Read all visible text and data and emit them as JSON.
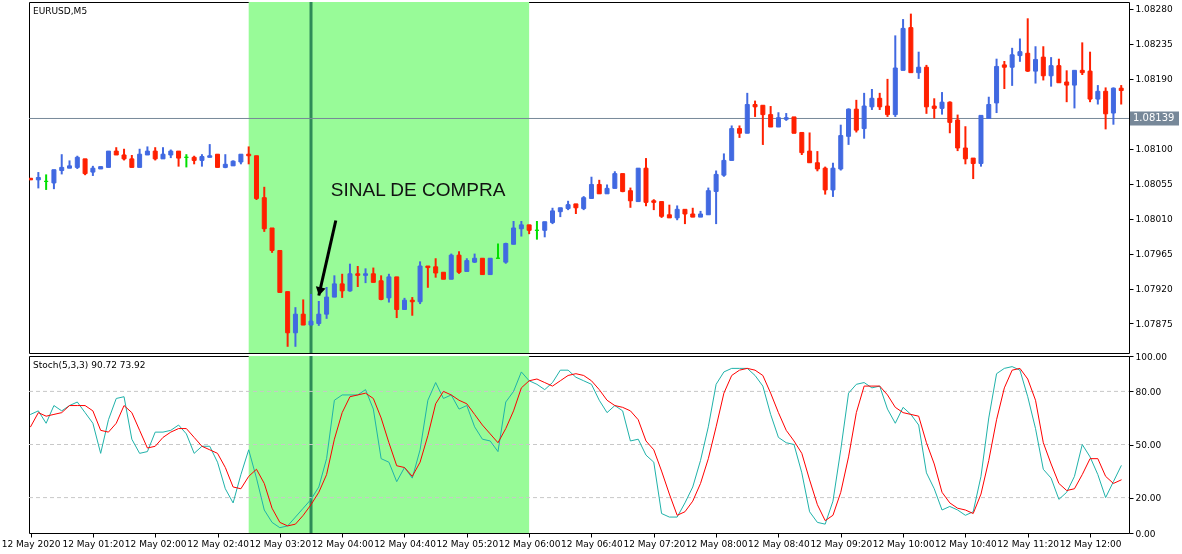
{
  "chart_data": [
    {
      "type": "candlestick",
      "title": "EURUSD,M5",
      "x": [
        "2020-05-12T00:40",
        "2020-05-12T00:45",
        "2020-05-12T00:50",
        "2020-05-12T00:55",
        "2020-05-12T01:00",
        "2020-05-12T01:05",
        "2020-05-12T01:10",
        "2020-05-12T01:15",
        "2020-05-12T01:20",
        "2020-05-12T01:25",
        "2020-05-12T01:30",
        "2020-05-12T01:35",
        "2020-05-12T01:40",
        "2020-05-12T01:45",
        "2020-05-12T01:50",
        "2020-05-12T01:55",
        "2020-05-12T02:00",
        "2020-05-12T02:05",
        "2020-05-12T02:10",
        "2020-05-12T02:15",
        "2020-05-12T02:20",
        "2020-05-12T02:25",
        "2020-05-12T02:30",
        "2020-05-12T02:35",
        "2020-05-12T02:40",
        "2020-05-12T02:45",
        "2020-05-12T02:50",
        "2020-05-12T02:55",
        "2020-05-12T03:00",
        "2020-05-12T03:05",
        "2020-05-12T03:10",
        "2020-05-12T03:15",
        "2020-05-12T03:20",
        "2020-05-12T03:25",
        "2020-05-12T03:30",
        "2020-05-12T03:35",
        "2020-05-12T03:40",
        "2020-05-12T03:45",
        "2020-05-12T03:50",
        "2020-05-12T03:55",
        "2020-05-12T04:00",
        "2020-05-12T04:05",
        "2020-05-12T04:10",
        "2020-05-12T04:15",
        "2020-05-12T04:20",
        "2020-05-12T04:25",
        "2020-05-12T04:30",
        "2020-05-12T04:35",
        "2020-05-12T04:40",
        "2020-05-12T04:45",
        "2020-05-12T04:50",
        "2020-05-12T04:55",
        "2020-05-12T05:00",
        "2020-05-12T05:05",
        "2020-05-12T05:10",
        "2020-05-12T05:15",
        "2020-05-12T05:20",
        "2020-05-12T05:25",
        "2020-05-12T05:30",
        "2020-05-12T05:35",
        "2020-05-12T05:40",
        "2020-05-12T05:45",
        "2020-05-12T05:50",
        "2020-05-12T05:55",
        "2020-05-12T06:00",
        "2020-05-12T06:05",
        "2020-05-12T06:10",
        "2020-05-12T06:15",
        "2020-05-12T06:20",
        "2020-05-12T06:25",
        "2020-05-12T06:30",
        "2020-05-12T06:35",
        "2020-05-12T06:40",
        "2020-05-12T06:45",
        "2020-05-12T06:50",
        "2020-05-12T06:55",
        "2020-05-12T07:00",
        "2020-05-12T07:05",
        "2020-05-12T07:10",
        "2020-05-12T07:15",
        "2020-05-12T07:20",
        "2020-05-12T07:25",
        "2020-05-12T07:30",
        "2020-05-12T07:35",
        "2020-05-12T07:40",
        "2020-05-12T07:45",
        "2020-05-12T07:50",
        "2020-05-12T07:55",
        "2020-05-12T08:00",
        "2020-05-12T08:05",
        "2020-05-12T08:10",
        "2020-05-12T08:15",
        "2020-05-12T08:20",
        "2020-05-12T08:25",
        "2020-05-12T08:30",
        "2020-05-12T08:35",
        "2020-05-12T08:40",
        "2020-05-12T08:45",
        "2020-05-12T08:50",
        "2020-05-12T08:55",
        "2020-05-12T09:00",
        "2020-05-12T09:05",
        "2020-05-12T09:10",
        "2020-05-12T09:15",
        "2020-05-12T09:20",
        "2020-05-12T09:25",
        "2020-05-12T09:30",
        "2020-05-12T09:35",
        "2020-05-12T09:40",
        "2020-05-12T09:45",
        "2020-05-12T09:50",
        "2020-05-12T09:55",
        "2020-05-12T10:00",
        "2020-05-12T10:05",
        "2020-05-12T10:10",
        "2020-05-12T10:15",
        "2020-05-12T10:20",
        "2020-05-12T10:25",
        "2020-05-12T10:30",
        "2020-05-12T10:35",
        "2020-05-12T10:40",
        "2020-05-12T10:45",
        "2020-05-12T10:50",
        "2020-05-12T10:55",
        "2020-05-12T11:00",
        "2020-05-12T11:05",
        "2020-05-12T11:10",
        "2020-05-12T11:15",
        "2020-05-12T11:20",
        "2020-05-12T11:25",
        "2020-05-12T11:30",
        "2020-05-12T11:35",
        "2020-05-12T11:40",
        "2020-05-12T11:45",
        "2020-05-12T11:50",
        "2020-05-12T11:55",
        "2020-05-12T12:00",
        "2020-05-12T12:05",
        "2020-05-12T12:10",
        "2020-05-12T12:15",
        "2020-05-12T12:20"
      ],
      "ohlc": [
        [
          1.08062,
          1.08062,
          1.0806,
          1.0806
        ],
        [
          1.0806,
          1.0807,
          1.08049,
          1.08063
        ],
        [
          1.08058,
          1.08067,
          1.08047,
          1.08058
        ],
        [
          1.08056,
          1.08073,
          1.08048,
          1.08073
        ],
        [
          1.08072,
          1.08093,
          1.08067,
          1.08076
        ],
        [
          1.08075,
          1.08085,
          1.08075,
          1.08078
        ],
        [
          1.08076,
          1.08091,
          1.08074,
          1.08089
        ],
        [
          1.08087,
          1.08087,
          1.08066,
          1.08068
        ],
        [
          1.0807,
          1.08078,
          1.08065,
          1.08075
        ],
        [
          1.08074,
          1.08077,
          1.08074,
          1.08077
        ],
        [
          1.08076,
          1.08097,
          1.08076,
          1.08097
        ],
        [
          1.08097,
          1.08102,
          1.08092,
          1.08092
        ],
        [
          1.08092,
          1.081,
          1.08085,
          1.08087
        ],
        [
          1.08087,
          1.08092,
          1.08076,
          1.08076
        ],
        [
          1.08076,
          1.081,
          1.08076,
          1.08093
        ],
        [
          1.08092,
          1.08103,
          1.08092,
          1.08097
        ],
        [
          1.08097,
          1.08102,
          1.08085,
          1.08087
        ],
        [
          1.08087,
          1.08102,
          1.08087,
          1.08093
        ],
        [
          1.08092,
          1.08099,
          1.08088,
          1.08097
        ],
        [
          1.08097,
          1.08097,
          1.08077,
          1.08088
        ],
        [
          1.08089,
          1.08093,
          1.08076,
          1.08089
        ],
        [
          1.08089,
          1.08091,
          1.0808,
          1.08085
        ],
        [
          1.08085,
          1.08093,
          1.08077,
          1.0809
        ],
        [
          1.08089,
          1.08106,
          1.08089,
          1.08091
        ],
        [
          1.08093,
          1.08093,
          1.08076,
          1.08076
        ],
        [
          1.08076,
          1.08093,
          1.08075,
          1.0808
        ],
        [
          1.08078,
          1.08085,
          1.08078,
          1.08084
        ],
        [
          1.08083,
          1.08093,
          1.0808,
          1.08093
        ],
        [
          1.08093,
          1.08103,
          1.0808,
          1.08091
        ],
        [
          1.08091,
          1.08091,
          1.08034,
          1.08036
        ],
        [
          1.08037,
          1.08051,
          1.07993,
          1.07997
        ],
        [
          1.07998,
          1.07998,
          1.07966,
          1.07969
        ],
        [
          1.07969,
          1.07969,
          1.07915,
          1.07915
        ],
        [
          1.07916,
          1.07916,
          1.07845,
          1.07863
        ],
        [
          1.07863,
          1.07896,
          1.07845,
          1.07887
        ],
        [
          1.07887,
          1.07906,
          1.07873,
          1.07873
        ],
        [
          1.07873,
          1.07913,
          1.07873,
          1.07878
        ],
        [
          1.07875,
          1.07904,
          1.07872,
          1.07887
        ],
        [
          1.07887,
          1.07922,
          1.07881,
          1.07909
        ],
        [
          1.07909,
          1.07937,
          1.07909,
          1.07926
        ],
        [
          1.07926,
          1.07939,
          1.07908,
          1.07917
        ],
        [
          1.07917,
          1.07952,
          1.07916,
          1.07939
        ],
        [
          1.07939,
          1.07949,
          1.07922,
          1.07937
        ],
        [
          1.07937,
          1.07946,
          1.07927,
          1.07939
        ],
        [
          1.07939,
          1.07947,
          1.07928,
          1.07928
        ],
        [
          1.0793,
          1.07937,
          1.07905,
          1.07906
        ],
        [
          1.07908,
          1.07939,
          1.07902,
          1.07935
        ],
        [
          1.07935,
          1.07935,
          1.07882,
          1.07893
        ],
        [
          1.07893,
          1.07908,
          1.07893,
          1.07905
        ],
        [
          1.07905,
          1.07909,
          1.07885,
          1.07903
        ],
        [
          1.07903,
          1.07955,
          1.079,
          1.07949
        ],
        [
          1.07949,
          1.07949,
          1.07921,
          1.07947
        ],
        [
          1.07948,
          1.07959,
          1.07934,
          1.0794
        ],
        [
          1.07941,
          1.07941,
          1.07932,
          1.07932
        ],
        [
          1.07932,
          1.07965,
          1.07932,
          1.07963
        ],
        [
          1.07963,
          1.07968,
          1.07939,
          1.07941
        ],
        [
          1.07942,
          1.07959,
          1.07942,
          1.07956
        ],
        [
          1.07954,
          1.07965,
          1.07953,
          1.07959
        ],
        [
          1.07959,
          1.07959,
          1.07938,
          1.07938
        ],
        [
          1.07938,
          1.07959,
          1.07938,
          1.07959
        ],
        [
          1.07959,
          1.07978,
          1.07959,
          1.07959
        ],
        [
          1.07954,
          1.07979,
          1.07952,
          1.07978
        ],
        [
          1.07977,
          1.08007,
          1.07977,
          1.07998
        ],
        [
          1.07997,
          1.08007,
          1.07987,
          1.08002
        ],
        [
          1.08002,
          1.08002,
          1.0799,
          1.07995
        ],
        [
          1.07995,
          1.08007,
          1.07983,
          1.07995
        ],
        [
          1.07995,
          1.08006,
          1.07986,
          1.08006
        ],
        [
          1.08005,
          1.08024,
          1.08003,
          1.0802
        ],
        [
          1.08019,
          1.08024,
          1.08012,
          1.08024
        ],
        [
          1.08023,
          1.08033,
          1.08021,
          1.08028
        ],
        [
          1.08029,
          1.08029,
          1.08016,
          1.08024
        ],
        [
          1.08023,
          1.08039,
          1.08021,
          1.08037
        ],
        [
          1.08036,
          1.08064,
          1.08036,
          1.08054
        ],
        [
          1.08054,
          1.0806,
          1.08042,
          1.08042
        ],
        [
          1.08042,
          1.08054,
          1.08042,
          1.08049
        ],
        [
          1.08049,
          1.08071,
          1.08049,
          1.08068
        ],
        [
          1.08068,
          1.08068,
          1.08044,
          1.08045
        ],
        [
          1.08046,
          1.0805,
          1.08024,
          1.08033
        ],
        [
          1.08032,
          1.08075,
          1.08032,
          1.08075
        ],
        [
          1.08075,
          1.08088,
          1.08026,
          1.08031
        ],
        [
          1.08033,
          1.08035,
          1.08021,
          1.08031
        ],
        [
          1.08032,
          1.08032,
          1.08011,
          1.08013
        ],
        [
          1.08015,
          1.08028,
          1.08011,
          1.08011
        ],
        [
          1.08011,
          1.08027,
          1.08008,
          1.08022
        ],
        [
          1.08022,
          1.08022,
          1.08003,
          1.08016
        ],
        [
          1.08016,
          1.08024,
          1.08012,
          1.08012
        ],
        [
          1.08012,
          1.0802,
          1.08012,
          1.08016
        ],
        [
          1.08015,
          1.0805,
          1.08015,
          1.08046
        ],
        [
          1.08045,
          1.08072,
          1.08003,
          1.08067
        ],
        [
          1.08066,
          1.08094,
          1.08064,
          1.08085
        ],
        [
          1.08085,
          1.0813,
          1.08085,
          1.08126
        ],
        [
          1.08126,
          1.0813,
          1.08114,
          1.0812
        ],
        [
          1.0812,
          1.08172,
          1.0812,
          1.08157
        ],
        [
          1.08157,
          1.08162,
          1.08141,
          1.08154
        ],
        [
          1.08156,
          1.08156,
          1.08105,
          1.08144
        ],
        [
          1.08144,
          1.08155,
          1.08128,
          1.08128
        ],
        [
          1.08128,
          1.08147,
          1.08128,
          1.0814
        ],
        [
          1.08138,
          1.08146,
          1.08136,
          1.0814
        ],
        [
          1.08141,
          1.08141,
          1.0812,
          1.0812
        ],
        [
          1.08121,
          1.08121,
          1.08092,
          1.08095
        ],
        [
          1.08097,
          1.08121,
          1.08082,
          1.08082
        ],
        [
          1.08082,
          1.08097,
          1.08071,
          1.08074
        ],
        [
          1.08075,
          1.08077,
          1.08041,
          1.08047
        ],
        [
          1.08047,
          1.08082,
          1.08038,
          1.08075
        ],
        [
          1.08074,
          1.08131,
          1.08072,
          1.08117
        ],
        [
          1.08116,
          1.08152,
          1.08105,
          1.08151
        ],
        [
          1.08151,
          1.08163,
          1.08121,
          1.08124
        ],
        [
          1.08126,
          1.08172,
          1.08113,
          1.08155
        ],
        [
          1.08154,
          1.08177,
          1.0815,
          1.08165
        ],
        [
          1.08165,
          1.08172,
          1.0815,
          1.08154
        ],
        [
          1.08155,
          1.0819,
          1.08141,
          1.08144
        ],
        [
          1.08144,
          1.08246,
          1.08141,
          1.08204
        ],
        [
          1.08201,
          1.08267,
          1.08201,
          1.08255
        ],
        [
          1.08256,
          1.08274,
          1.08198,
          1.08198
        ],
        [
          1.08198,
          1.08225,
          1.0819,
          1.08205
        ],
        [
          1.08205,
          1.08208,
          1.08145,
          1.08154
        ],
        [
          1.08155,
          1.08165,
          1.08139,
          1.08152
        ],
        [
          1.08152,
          1.08173,
          1.08144,
          1.0816
        ],
        [
          1.0816,
          1.08161,
          1.0812,
          1.08134
        ],
        [
          1.08137,
          1.08144,
          1.08097,
          1.08101
        ],
        [
          1.08101,
          1.08129,
          1.0808,
          1.08087
        ],
        [
          1.08088,
          1.08088,
          1.08061,
          1.08081
        ],
        [
          1.08081,
          1.08143,
          1.08077,
          1.08143
        ],
        [
          1.08139,
          1.08167,
          1.08139,
          1.08157
        ],
        [
          1.08159,
          1.08216,
          1.08146,
          1.08206
        ],
        [
          1.08208,
          1.08213,
          1.08177,
          1.08205
        ],
        [
          1.08205,
          1.0823,
          1.08181,
          1.08221
        ],
        [
          1.0822,
          1.08242,
          1.08212,
          1.08225
        ],
        [
          1.08223,
          1.08268,
          1.08199,
          1.082
        ],
        [
          1.082,
          1.08232,
          1.08184,
          1.08215
        ],
        [
          1.08218,
          1.08232,
          1.08188,
          1.08194
        ],
        [
          1.08194,
          1.08218,
          1.0818,
          1.08207
        ],
        [
          1.08207,
          1.08216,
          1.08185,
          1.08185
        ],
        [
          1.08186,
          1.08201,
          1.0816,
          1.08182
        ],
        [
          1.08182,
          1.08201,
          1.08152,
          1.08201
        ],
        [
          1.08201,
          1.08237,
          1.08195,
          1.08198
        ],
        [
          1.082,
          1.08225,
          1.0816,
          1.08164
        ],
        [
          1.08164,
          1.08182,
          1.08157,
          1.08174
        ],
        [
          1.08174,
          1.08179,
          1.08125,
          1.08145
        ],
        [
          1.08146,
          1.08179,
          1.08131,
          1.08178
        ],
        [
          1.08178,
          1.08182,
          1.08157,
          1.08175
        ]
      ],
      "colors": [
        "#ff2000",
        "#4169e1",
        "#00e000",
        "#4169e1",
        "#4169e1",
        "#4169e1",
        "#4169e1",
        "#ff2000",
        "#4169e1",
        "#4169e1",
        "#4169e1",
        "#ff2000",
        "#ff2000",
        "#ff2000",
        "#4169e1",
        "#4169e1",
        "#ff2000",
        "#4169e1",
        "#4169e1",
        "#ff2000",
        "#00e000",
        "#ff2000",
        "#4169e1",
        "#4169e1",
        "#ff2000",
        "#4169e1",
        "#4169e1",
        "#4169e1",
        "#ff2000",
        "#ff2000",
        "#ff2000",
        "#ff2000",
        "#ff2000",
        "#ff2000",
        "#4169e1",
        "#ff2000",
        "#4169e1",
        "#4169e1",
        "#4169e1",
        "#4169e1",
        "#ff2000",
        "#4169e1",
        "#ff2000",
        "#4169e1",
        "#ff2000",
        "#ff2000",
        "#4169e1",
        "#ff2000",
        "#4169e1",
        "#ff2000",
        "#4169e1",
        "#ff2000",
        "#ff2000",
        "#ff2000",
        "#4169e1",
        "#ff2000",
        "#4169e1",
        "#4169e1",
        "#ff2000",
        "#4169e1",
        "#00e000",
        "#4169e1",
        "#4169e1",
        "#4169e1",
        "#ff2000",
        "#00e000",
        "#4169e1",
        "#4169e1",
        "#4169e1",
        "#4169e1",
        "#ff2000",
        "#4169e1",
        "#4169e1",
        "#ff2000",
        "#4169e1",
        "#4169e1",
        "#ff2000",
        "#ff2000",
        "#4169e1",
        "#ff2000",
        "#ff2000",
        "#ff2000",
        "#ff2000",
        "#4169e1",
        "#ff2000",
        "#ff2000",
        "#4169e1",
        "#4169e1",
        "#4169e1",
        "#4169e1",
        "#4169e1",
        "#ff2000",
        "#4169e1",
        "#ff2000",
        "#ff2000",
        "#ff2000",
        "#4169e1",
        "#4169e1",
        "#ff2000",
        "#ff2000",
        "#ff2000",
        "#ff2000",
        "#ff2000",
        "#4169e1",
        "#4169e1",
        "#4169e1",
        "#ff2000",
        "#4169e1",
        "#4169e1",
        "#ff2000",
        "#ff2000",
        "#4169e1",
        "#4169e1",
        "#ff2000",
        "#4169e1",
        "#ff2000",
        "#ff2000",
        "#4169e1",
        "#ff2000",
        "#ff2000",
        "#ff2000",
        "#ff2000",
        "#4169e1",
        "#4169e1",
        "#4169e1",
        "#ff2000",
        "#4169e1",
        "#4169e1",
        "#ff2000",
        "#4169e1",
        "#ff2000",
        "#4169e1",
        "#ff2000",
        "#ff2000",
        "#4169e1",
        "#ff2000",
        "#ff2000",
        "#4169e1",
        "#ff2000",
        "#4169e1",
        "#ff2000"
      ],
      "xlim": [
        "2020-05-12T00:39",
        "2020-05-12T12:25"
      ],
      "ylim": [
        1.07837,
        1.08289
      ],
      "yticks": [
        1.07875,
        {
          "value": 1.0792,
          "label": "1.07920"
        },
        1.07965,
        {
          "value": 1.0801,
          "label": "1.08010"
        },
        1.08055,
        {
          "value": 1.081,
          "label": "1.08100"
        },
        {
          "value": 1.0819,
          "label": "1.08190"
        },
        1.08235,
        {
          "value": 1.0828,
          "label": "1.08280"
        }
      ],
      "tick_labels": "y",
      "bands": [
        {
          "axis": "x",
          "from": "2020-05-12T03:00",
          "to": "2020-05-12T06:00",
          "color": "#98fb98"
        }
      ],
      "ref_lines": [
        {
          "axis": "x",
          "value": "2020-05-12T03:40",
          "color": "#2e8b57"
        },
        {
          "axis": "y",
          "value": 1.08139,
          "label": "1.08139",
          "color": "#778899"
        }
      ],
      "annotations": [
        {
          "text": "SINAL DE COMPRA",
          "x": "2020-05-12T03:45",
          "y": 1.07911
        }
      ]
    },
    {
      "type": "line",
      "title": "Stoch(5,3,3) 90.72 73.92",
      "x": [
        "2020-05-12T00:40",
        "2020-05-12T00:45",
        "2020-05-12T00:50",
        "2020-05-12T00:55",
        "2020-05-12T01:00",
        "2020-05-12T01:05",
        "2020-05-12T01:10",
        "2020-05-12T01:15",
        "2020-05-12T01:20",
        "2020-05-12T01:25",
        "2020-05-12T01:30",
        "2020-05-12T01:35",
        "2020-05-12T01:40",
        "2020-05-12T01:45",
        "2020-05-12T01:50",
        "2020-05-12T01:55",
        "2020-05-12T02:00",
        "2020-05-12T02:05",
        "2020-05-12T02:10",
        "2020-05-12T02:15",
        "2020-05-12T02:20",
        "2020-05-12T02:25",
        "2020-05-12T02:30",
        "2020-05-12T02:35",
        "2020-05-12T02:40",
        "2020-05-12T02:45",
        "2020-05-12T02:50",
        "2020-05-12T02:55",
        "2020-05-12T03:00",
        "2020-05-12T03:05",
        "2020-05-12T03:10",
        "2020-05-12T03:15",
        "2020-05-12T03:20",
        "2020-05-12T03:25",
        "2020-05-12T03:30",
        "2020-05-12T03:35",
        "2020-05-12T03:40",
        "2020-05-12T03:45",
        "2020-05-12T03:50",
        "2020-05-12T03:55",
        "2020-05-12T04:00",
        "2020-05-12T04:05",
        "2020-05-12T04:10",
        "2020-05-12T04:15",
        "2020-05-12T04:20",
        "2020-05-12T04:25",
        "2020-05-12T04:30",
        "2020-05-12T04:35",
        "2020-05-12T04:40",
        "2020-05-12T04:45",
        "2020-05-12T04:50",
        "2020-05-12T04:55",
        "2020-05-12T05:00",
        "2020-05-12T05:05",
        "2020-05-12T05:10",
        "2020-05-12T05:15",
        "2020-05-12T05:20",
        "2020-05-12T05:25",
        "2020-05-12T05:30",
        "2020-05-12T05:35",
        "2020-05-12T05:40",
        "2020-05-12T05:45",
        "2020-05-12T05:50",
        "2020-05-12T05:55",
        "2020-05-12T06:00",
        "2020-05-12T06:05",
        "2020-05-12T06:10",
        "2020-05-12T06:15",
        "2020-05-12T06:20",
        "2020-05-12T06:25",
        "2020-05-12T06:30",
        "2020-05-12T06:35",
        "2020-05-12T06:40",
        "2020-05-12T06:45",
        "2020-05-12T06:50",
        "2020-05-12T06:55",
        "2020-05-12T07:00",
        "2020-05-12T07:05",
        "2020-05-12T07:10",
        "2020-05-12T07:15",
        "2020-05-12T07:20",
        "2020-05-12T07:25",
        "2020-05-12T07:30",
        "2020-05-12T07:35",
        "2020-05-12T07:40",
        "2020-05-12T07:45",
        "2020-05-12T07:50",
        "2020-05-12T07:55",
        "2020-05-12T08:00",
        "2020-05-12T08:05",
        "2020-05-12T08:10",
        "2020-05-12T08:15",
        "2020-05-12T08:20",
        "2020-05-12T08:25",
        "2020-05-12T08:30",
        "2020-05-12T08:35",
        "2020-05-12T08:40",
        "2020-05-12T08:45",
        "2020-05-12T08:50",
        "2020-05-12T08:55",
        "2020-05-12T09:00",
        "2020-05-12T09:05",
        "2020-05-12T09:10",
        "2020-05-12T09:15",
        "2020-05-12T09:20",
        "2020-05-12T09:25",
        "2020-05-12T09:30",
        "2020-05-12T09:35",
        "2020-05-12T09:40",
        "2020-05-12T09:45",
        "2020-05-12T09:50",
        "2020-05-12T09:55",
        "2020-05-12T10:00",
        "2020-05-12T10:05",
        "2020-05-12T10:10",
        "2020-05-12T10:15",
        "2020-05-12T10:20",
        "2020-05-12T10:25",
        "2020-05-12T10:30",
        "2020-05-12T10:35",
        "2020-05-12T10:40",
        "2020-05-12T10:45",
        "2020-05-12T10:50",
        "2020-05-12T10:55",
        "2020-05-12T11:00",
        "2020-05-12T11:05",
        "2020-05-12T11:10",
        "2020-05-12T11:15",
        "2020-05-12T11:20",
        "2020-05-12T11:25",
        "2020-05-12T11:30",
        "2020-05-12T11:35",
        "2020-05-12T11:40",
        "2020-05-12T11:45",
        "2020-05-12T11:50",
        "2020-05-12T11:55",
        "2020-05-12T12:00",
        "2020-05-12T12:05",
        "2020-05-12T12:10",
        "2020-05-12T12:15",
        "2020-05-12T12:20"
      ],
      "series": [
        {
          "color": "#20b2aa",
          "values": [
            67,
            69,
            62,
            72,
            69,
            72,
            74,
            68,
            62,
            45,
            64,
            76,
            77,
            53,
            45,
            46,
            57,
            57,
            58,
            61,
            56,
            45,
            49,
            49,
            40,
            25,
            17,
            33,
            47,
            31,
            13,
            6,
            3,
            4,
            9,
            14,
            19,
            26,
            42,
            75,
            78,
            78,
            78,
            81,
            70,
            42,
            40,
            29,
            37,
            31,
            47,
            75,
            85,
            76,
            78,
            70,
            72,
            60,
            53,
            52,
            46,
            74,
            80,
            91,
            86,
            84,
            81,
            85,
            92,
            92,
            88,
            86,
            84,
            75,
            68,
            72,
            69,
            52,
            53,
            44,
            40,
            11,
            9,
            9,
            17,
            26,
            41,
            60,
            84,
            91,
            93,
            93,
            93,
            89,
            83,
            67,
            54,
            51,
            50,
            34,
            12,
            6,
            5,
            18,
            47,
            79,
            84,
            85,
            82,
            83,
            70,
            62,
            71,
            67,
            61,
            34,
            25,
            13,
            15,
            13,
            10,
            12,
            32,
            65,
            90,
            93,
            94,
            92,
            77,
            59,
            36,
            31,
            19,
            23,
            32,
            50,
            43,
            33,
            20,
            29,
            38
          ]
        },
        {
          "color": "#ff0000",
          "values": [
            60,
            68,
            66,
            67,
            68,
            72,
            72,
            72,
            69,
            58,
            57,
            62,
            72,
            68,
            58,
            48,
            49,
            54,
            57,
            59,
            59,
            54,
            49,
            47,
            45,
            37,
            26,
            25,
            32,
            36,
            28,
            14,
            6,
            4,
            5,
            10,
            16,
            23,
            33,
            53,
            68,
            77,
            78,
            79,
            76,
            65,
            51,
            38,
            37,
            32,
            40,
            55,
            73,
            80,
            78,
            75,
            73,
            67,
            61,
            56,
            51,
            59,
            69,
            82,
            86,
            87,
            85,
            83,
            86,
            89,
            90,
            89,
            86,
            81,
            75,
            72,
            71,
            69,
            64,
            52,
            47,
            35,
            22,
            10,
            12,
            18,
            28,
            42,
            60,
            79,
            89,
            92,
            93,
            92,
            89,
            79,
            68,
            58,
            52,
            45,
            30,
            16,
            7,
            10,
            23,
            43,
            68,
            83,
            83,
            83,
            78,
            71,
            68,
            67,
            66,
            51,
            39,
            23,
            17,
            14,
            13,
            11,
            22,
            41,
            64,
            82,
            92,
            93,
            87,
            75,
            51,
            39,
            28,
            24,
            25,
            33,
            42,
            42,
            32,
            28,
            30
          ]
        }
      ],
      "xlim": [
        "2020-05-12T00:39",
        "2020-05-12T12:25"
      ],
      "xticks": [
        {
          "value": "2020-05-12T00:40",
          "label": "12 May 2020"
        },
        {
          "value": "2020-05-12T01:20",
          "label": "12 May 01:20"
        },
        {
          "value": "2020-05-12T02:00",
          "label": "12 May 02:00"
        },
        {
          "value": "2020-05-12T02:40",
          "label": "12 May 02:40"
        },
        {
          "value": "2020-05-12T03:20",
          "label": "12 May 03:20"
        },
        {
          "value": "2020-05-12T04:00",
          "label": "12 May 04:00"
        },
        {
          "value": "2020-05-12T04:40",
          "label": "12 May 04:40"
        },
        {
          "value": "2020-05-12T05:20",
          "label": "12 May 05:20"
        },
        {
          "value": "2020-05-12T06:00",
          "label": "12 May 06:00"
        },
        {
          "value": "2020-05-12T06:40",
          "label": "12 May 06:40"
        },
        {
          "value": "2020-05-12T07:20",
          "label": "12 May 07:20"
        },
        {
          "value": "2020-05-12T08:00",
          "label": "12 May 08:00"
        },
        {
          "value": "2020-05-12T08:40",
          "label": "12 May 08:40"
        },
        {
          "value": "2020-05-12T09:20",
          "label": "12 May 09:20"
        },
        {
          "value": "2020-05-12T10:00",
          "label": "12 May 10:00"
        },
        {
          "value": "2020-05-12T10:40",
          "label": "12 May 10:40"
        },
        {
          "value": "2020-05-12T11:20",
          "label": "12 May 11:20"
        },
        {
          "value": "2020-05-12T12:00",
          "label": "12 May 12:00"
        }
      ],
      "ylim": [
        0,
        100
      ],
      "yticks": [
        {
          "value": 0,
          "label": "0.00"
        },
        {
          "value": 20,
          "label": "20.00"
        },
        {
          "value": 50,
          "label": "50.00"
        },
        {
          "value": 80,
          "label": "80.00"
        },
        {
          "value": 100,
          "label": "100.00"
        }
      ],
      "bands": [
        {
          "axis": "x",
          "from": "2020-05-12T03:00",
          "to": "2020-05-12T06:00",
          "color": "#98fb98"
        }
      ],
      "ref_lines": [
        {
          "axis": "x",
          "value": "2020-05-12T03:40",
          "color": "#2e8b57"
        },
        {
          "axis": "y",
          "value": 20,
          "color": "#c8c8c8",
          "line_style": "dashed"
        },
        {
          "axis": "y",
          "value": 50,
          "color": "#c8c8c8",
          "line_style": "dashed"
        },
        {
          "axis": "y",
          "value": 80,
          "color": "#c8c8c8",
          "line_style": "dashed"
        }
      ]
    }
  ]
}
